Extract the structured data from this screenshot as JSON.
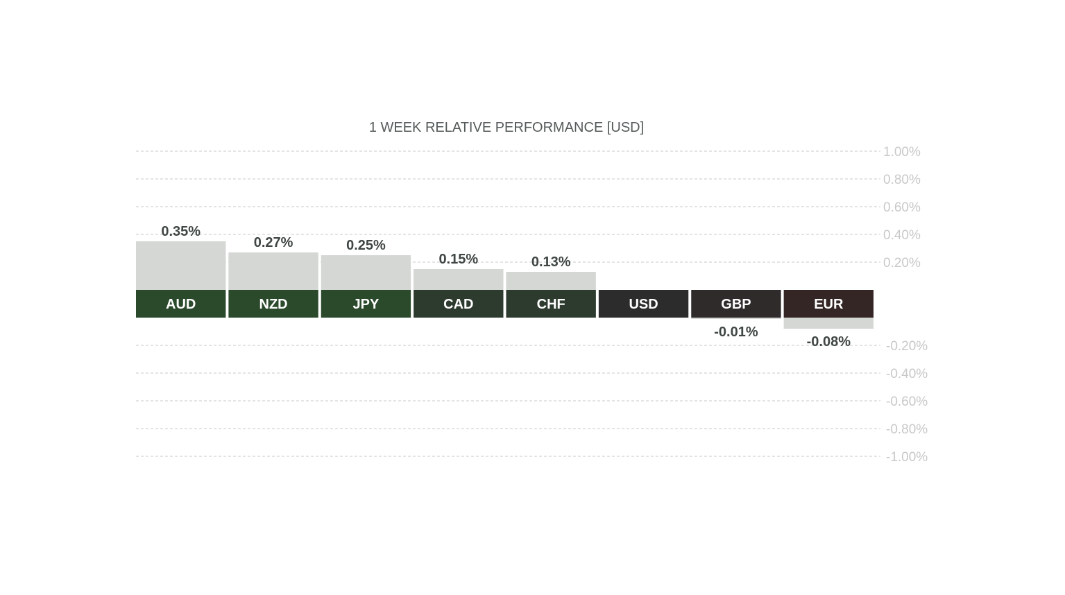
{
  "chart_data": {
    "type": "bar",
    "title": "1 WEEK RELATIVE PERFORMANCE  [USD]",
    "categories": [
      "AUD",
      "NZD",
      "JPY",
      "CAD",
      "CHF",
      "USD",
      "GBP",
      "EUR"
    ],
    "values": [
      0.35,
      0.27,
      0.25,
      0.15,
      0.13,
      0.0,
      -0.01,
      -0.08
    ],
    "value_labels": [
      "0.35%",
      "0.27%",
      "0.25%",
      "0.15%",
      "0.13%",
      "",
      "-0.01%",
      "-0.08%"
    ],
    "ylim": [
      -1.0,
      1.0
    ],
    "yticks": [
      1.0,
      0.8,
      0.6,
      0.4,
      0.2,
      -0.2,
      -0.4,
      -0.6,
      -0.8,
      -1.0
    ],
    "ytick_labels": [
      "1.00%",
      "0.80%",
      "0.60%",
      "0.40%",
      "0.20%",
      "-0.20%",
      "-0.40%",
      "-0.60%",
      "-0.80%",
      "-1.00%"
    ],
    "grid": true,
    "xlabel": "",
    "ylabel": "",
    "colors": {
      "bar_fill": "#d4d7d3",
      "gridline": "#c8c8c8",
      "label_band": [
        "#2b4a2c",
        "#2b4a2c",
        "#2b4a2c",
        "#2d3b2f",
        "#2d3b2f",
        "#2c2c2c",
        "#2f2b2b",
        "#352626"
      ]
    }
  }
}
